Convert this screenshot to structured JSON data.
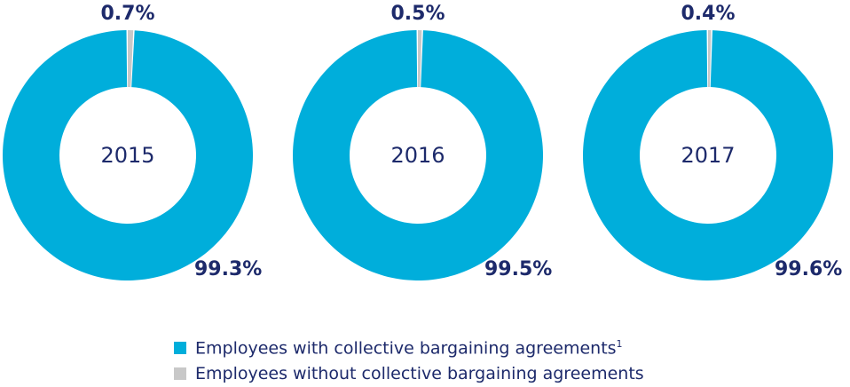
{
  "chart_data": [
    {
      "type": "pie",
      "center_label": "2015",
      "slices": [
        {
          "name": "Employees with collective bargaining agreements",
          "value": 99.3,
          "label": "99.3%",
          "color": "#00aedb"
        },
        {
          "name": "Employees without collective bargaining agreements",
          "value": 0.7,
          "label": "0.7%",
          "color": "#c8c8c8"
        }
      ]
    },
    {
      "type": "pie",
      "center_label": "2016",
      "slices": [
        {
          "name": "Employees with collective bargaining agreements",
          "value": 99.5,
          "label": "99.5%",
          "color": "#00aedb"
        },
        {
          "name": "Employees without collective bargaining agreements",
          "value": 0.5,
          "label": "0.5%",
          "color": "#c8c8c8"
        }
      ]
    },
    {
      "type": "pie",
      "center_label": "2017",
      "slices": [
        {
          "name": "Employees with collective bargaining agreements",
          "value": 99.6,
          "label": "99.6%",
          "color": "#00aedb"
        },
        {
          "name": "Employees without collective bargaining agreements",
          "value": 0.4,
          "label": "0.4%",
          "color": "#c8c8c8"
        }
      ]
    }
  ],
  "legend": {
    "items": [
      {
        "label": "Employees with collective bargaining agreements",
        "footnote": "1",
        "color": "#00aedb"
      },
      {
        "label": "Employees without collective bargaining agreements",
        "footnote": "",
        "color": "#c8c8c8"
      }
    ]
  },
  "colors": {
    "text": "#1d2a6b",
    "background": "#ffffff"
  }
}
